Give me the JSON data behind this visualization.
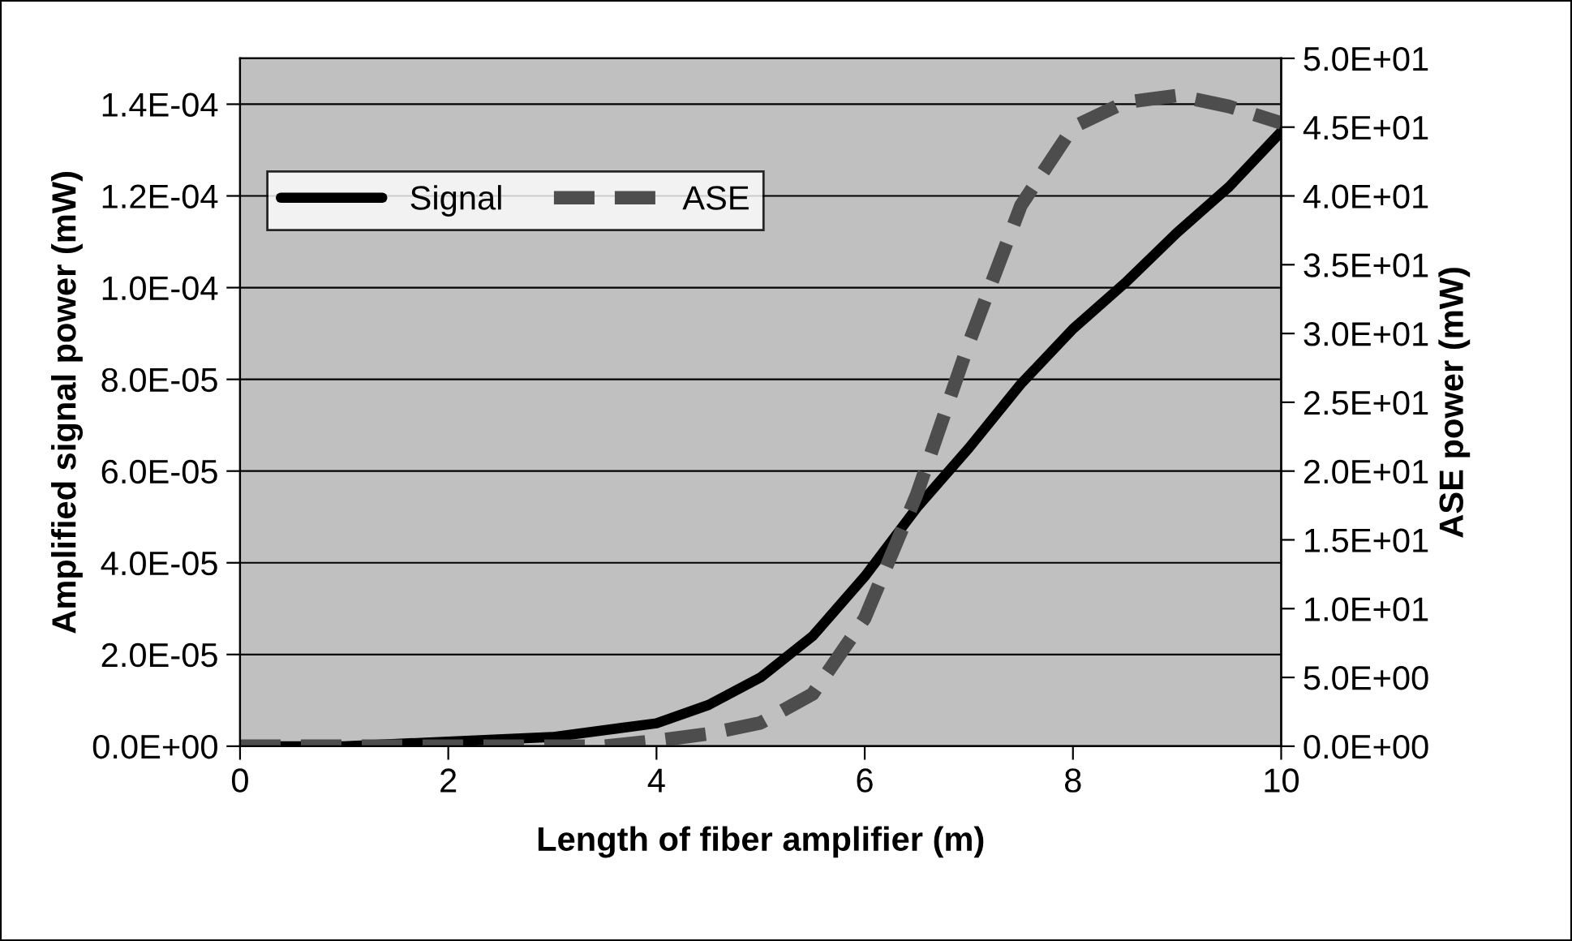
{
  "chart_data": {
    "type": "line",
    "xlabel": "Length of fiber amplifier (m)",
    "ylabel": "Amplified signal power (mW)",
    "y2label": "ASE power (mW)",
    "xlim": [
      0,
      10
    ],
    "xticks": [
      0,
      2,
      4,
      6,
      8,
      10
    ],
    "ylim": [
      0,
      0.00015
    ],
    "yticks": [
      {
        "value": 0,
        "label": "0.0E+00"
      },
      {
        "value": 2e-05,
        "label": "2.0E-05"
      },
      {
        "value": 4e-05,
        "label": "4.0E-05"
      },
      {
        "value": 6e-05,
        "label": "6.0E-05"
      },
      {
        "value": 8e-05,
        "label": "8.0E-05"
      },
      {
        "value": 0.0001,
        "label": "1.0E-04"
      },
      {
        "value": 0.00012,
        "label": "1.2E-04"
      },
      {
        "value": 0.00014,
        "label": "1.4E-04"
      }
    ],
    "y2lim": [
      0,
      50
    ],
    "y2ticks": [
      {
        "value": 0,
        "label": "0.0E+00"
      },
      {
        "value": 5,
        "label": "5.0E+00"
      },
      {
        "value": 10,
        "label": "1.0E+01"
      },
      {
        "value": 15,
        "label": "1.5E+01"
      },
      {
        "value": 20,
        "label": "2.0E+01"
      },
      {
        "value": 25,
        "label": "2.5E+01"
      },
      {
        "value": 30,
        "label": "3.0E+01"
      },
      {
        "value": 35,
        "label": "3.5E+01"
      },
      {
        "value": 40,
        "label": "4.0E+01"
      },
      {
        "value": 45,
        "label": "4.5E+01"
      },
      {
        "value": 50,
        "label": "5.0E+01"
      }
    ],
    "grid": "y",
    "legend": "top left",
    "series": [
      {
        "name": "Signal",
        "color": "#000000",
        "line_style": "solid",
        "x": [
          0,
          1,
          2,
          3,
          4,
          4.5,
          5,
          5.5,
          6,
          6.5,
          7,
          7.5,
          8,
          8.5,
          9,
          9.5,
          10
        ],
        "values": [
          0,
          0,
          1e-06,
          2e-06,
          5e-06,
          9e-06,
          1.5e-05,
          2.4e-05,
          3.7e-05,
          5.2e-05,
          6.5e-05,
          7.9e-05,
          9.1e-05,
          0.000101,
          0.000112,
          0.000122,
          0.000134
        ]
      },
      {
        "name": "ASE",
        "color": "#4d4d4d",
        "line_style": "dashed",
        "axis": "y2",
        "x": [
          0,
          1,
          2,
          3,
          3.5,
          4,
          4.5,
          5,
          5.5,
          6,
          6.5,
          7,
          7.5,
          8,
          8.5,
          9,
          9.5,
          10
        ],
        "values": [
          0,
          0,
          0,
          0,
          0,
          0.4,
          0.9,
          1.7,
          3.8,
          9.3,
          18.3,
          29.3,
          39.3,
          45.0,
          46.8,
          47.3,
          46.5,
          45.3
        ]
      }
    ]
  }
}
